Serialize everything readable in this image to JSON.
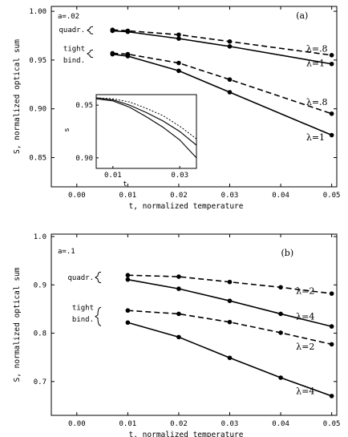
{
  "chart_data": [
    {
      "type": "line",
      "panel_label": "(a)",
      "param_label": "a=.02",
      "xlabel": "t, normalized temperature",
      "ylabel": "S, normalized optical sum",
      "xlim": [
        -0.005,
        0.051
      ],
      "ylim": [
        0.82,
        1.005
      ],
      "xticks": [
        "0.00",
        "0.01",
        "0.02",
        "0.03",
        "0.04",
        "0.05"
      ],
      "yticks": [
        "0.85",
        "0.90",
        "0.95",
        "1.00"
      ],
      "group_labels": [
        {
          "text": "quadr.",
          "y": 0.981
        },
        {
          "text": "tight",
          "y": 0.962
        },
        {
          "text": "bind.",
          "y": 0.95
        }
      ],
      "series": [
        {
          "label": "λ=.8",
          "style": "dashed",
          "x": [
            0.007,
            0.01,
            0.02,
            0.03,
            0.05
          ],
          "y": [
            0.981,
            0.98,
            0.976,
            0.969,
            0.955
          ],
          "label_x": 0.045,
          "label_y": 0.962
        },
        {
          "label": "λ=1",
          "style": "solid",
          "x": [
            0.007,
            0.01,
            0.02,
            0.03,
            0.05
          ],
          "y": [
            0.98,
            0.979,
            0.972,
            0.964,
            0.946
          ],
          "label_x": 0.045,
          "label_y": 0.947
        },
        {
          "label": "λ=.8",
          "style": "dashed",
          "x": [
            0.007,
            0.01,
            0.02,
            0.03,
            0.05
          ],
          "y": [
            0.957,
            0.956,
            0.947,
            0.93,
            0.895
          ],
          "label_x": 0.045,
          "label_y": 0.907
        },
        {
          "label": "λ=1",
          "style": "solid",
          "x": [
            0.007,
            0.01,
            0.02,
            0.03,
            0.05
          ],
          "y": [
            0.956,
            0.954,
            0.939,
            0.917,
            0.873
          ],
          "label_x": 0.045,
          "label_y": 0.871
        }
      ],
      "inset": {
        "xlabel": "t",
        "ylabel": "s",
        "xlim": [
          0.005,
          0.035
        ],
        "ylim": [
          0.89,
          0.96
        ],
        "xticks": [
          "0.01",
          "0.03"
        ],
        "yticks": [
          "0.90",
          "0.95"
        ],
        "series": [
          {
            "style": "dotted",
            "x": [
              0.005,
              0.01,
              0.015,
              0.02,
              0.025,
              0.03,
              0.035
            ],
            "y": [
              0.957,
              0.956,
              0.953,
              0.947,
              0.94,
              0.93,
              0.918
            ]
          },
          {
            "style": "solid",
            "x": [
              0.005,
              0.01,
              0.015,
              0.02,
              0.025,
              0.03,
              0.035
            ],
            "y": [
              0.956,
              0.954,
              0.948,
              0.939,
              0.929,
              0.917,
              0.9
            ]
          },
          {
            "style": "solid",
            "x": [
              0.005,
              0.01,
              0.015,
              0.02,
              0.025,
              0.03,
              0.035
            ],
            "y": [
              0.957,
              0.955,
              0.95,
              0.943,
              0.935,
              0.925,
              0.912
            ]
          }
        ]
      }
    },
    {
      "type": "line",
      "panel_label": "(b)",
      "param_label": "a=.1",
      "xlabel": "t, normalized temperature",
      "ylabel": "S, normalized optical sum",
      "xlim": [
        -0.005,
        0.051
      ],
      "ylim": [
        0.63,
        1.005
      ],
      "xticks": [
        "0.00",
        "0.01",
        "0.02",
        "0.03",
        "0.04",
        "0.05"
      ],
      "yticks": [
        "0.7",
        "0.8",
        "0.9",
        "1.0"
      ],
      "group_labels": [
        {
          "text": "quadr.",
          "y": 0.915
        },
        {
          "text": "tight",
          "y": 0.853
        },
        {
          "text": "bind.",
          "y": 0.829
        }
      ],
      "series": [
        {
          "label": "λ=2",
          "style": "dashed",
          "x": [
            0.01,
            0.02,
            0.03,
            0.04,
            0.05
          ],
          "y": [
            0.92,
            0.917,
            0.906,
            0.895,
            0.882
          ],
          "label_x": 0.043,
          "label_y": 0.888
        },
        {
          "label": "λ=4",
          "style": "solid",
          "x": [
            0.01,
            0.02,
            0.03,
            0.04,
            0.05
          ],
          "y": [
            0.911,
            0.892,
            0.867,
            0.84,
            0.814
          ],
          "label_x": 0.043,
          "label_y": 0.835
        },
        {
          "label": "λ=2",
          "style": "dashed",
          "x": [
            0.01,
            0.02,
            0.03,
            0.04,
            0.05
          ],
          "y": [
            0.847,
            0.84,
            0.823,
            0.801,
            0.777
          ],
          "label_x": 0.043,
          "label_y": 0.773
        },
        {
          "label": "λ=4",
          "style": "solid",
          "x": [
            0.01,
            0.02,
            0.03,
            0.04,
            0.05
          ],
          "y": [
            0.822,
            0.792,
            0.749,
            0.708,
            0.67
          ],
          "label_x": 0.043,
          "label_y": 0.681
        }
      ]
    }
  ]
}
